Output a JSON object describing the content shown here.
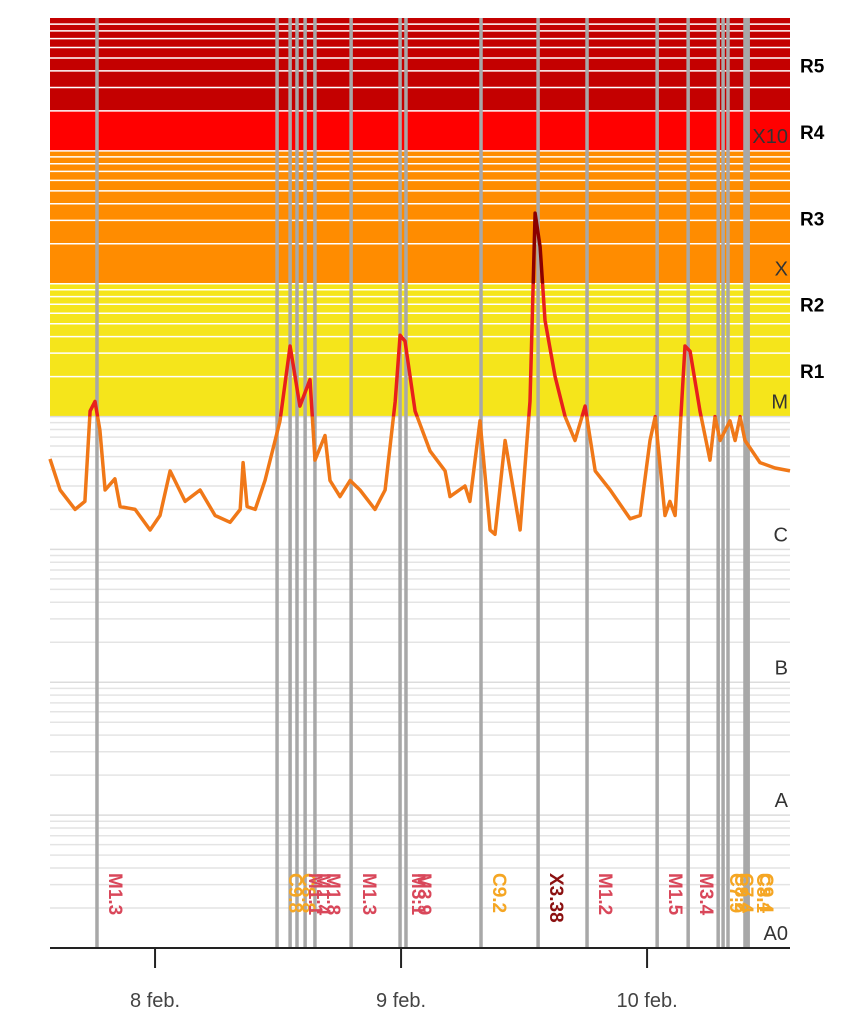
{
  "chart_data": {
    "type": "line",
    "yscale": "log",
    "xlim": [
      -0.427,
      2.581
    ],
    "xticks": [
      {
        "value": 0,
        "label": "8 feb."
      },
      {
        "value": 1,
        "label": "9 feb."
      },
      {
        "value": 2,
        "label": "10 feb."
      }
    ],
    "ylim": [
      1e-09,
      0.01
    ],
    "yticks": [
      {
        "value": 1e-09,
        "label": "A0"
      },
      {
        "value": 1e-08,
        "label": "A"
      },
      {
        "value": 1e-07,
        "label": "B"
      },
      {
        "value": 1e-06,
        "label": "C"
      },
      {
        "value": 1e-05,
        "label": "M"
      },
      {
        "value": 0.0001,
        "label": "X"
      },
      {
        "value": 0.001,
        "label": "X10"
      }
    ],
    "grid": true,
    "minor_grid": true,
    "bands": [
      {
        "label": "R1",
        "from": 1e-05,
        "to": 5e-05,
        "color": "#f5e51b"
      },
      {
        "label": "R2",
        "from": 5e-05,
        "to": 0.0001,
        "color": "#f5e51b"
      },
      {
        "label": "R3",
        "from": 0.0001,
        "to": 0.001,
        "color": "#ff8c00"
      },
      {
        "label": "R4",
        "from": 0.001,
        "to": 0.002,
        "color": "#ff0000"
      },
      {
        "label": "R5",
        "from": 0.002,
        "to": 0.01,
        "color": "#c40000"
      }
    ],
    "series": [
      {
        "color": "#f07818",
        "level_colors": [
          {
            "from": 1e-05,
            "color": "#e8201c"
          },
          {
            "from": 0.0001,
            "color": "#8b0000"
          }
        ],
        "x": [
          -0.427,
          -0.386,
          -0.325,
          -0.285,
          -0.264,
          -0.244,
          -0.224,
          -0.203,
          -0.163,
          -0.142,
          -0.081,
          -0.02,
          0.02,
          0.061,
          0.122,
          0.183,
          0.244,
          0.305,
          0.346,
          0.358,
          0.374,
          0.407,
          0.447,
          0.488,
          0.508,
          0.549,
          0.589,
          0.63,
          0.65,
          0.691,
          0.711,
          0.752,
          0.793,
          0.833,
          0.894,
          0.935,
          0.976,
          0.996,
          1.016,
          1.057,
          1.118,
          1.179,
          1.199,
          1.26,
          1.28,
          1.321,
          1.362,
          1.382,
          1.423,
          1.484,
          1.524,
          1.545,
          1.565,
          1.585,
          1.626,
          1.667,
          1.707,
          1.748,
          1.789,
          1.85,
          1.931,
          1.972,
          2.012,
          2.033,
          2.073,
          2.093,
          2.114,
          2.154,
          2.175,
          2.215,
          2.256,
          2.276,
          2.297,
          2.337,
          2.358,
          2.378,
          2.398,
          2.459,
          2.52,
          2.581
        ],
        "values": [
          4.8e-06,
          2.8e-06,
          2e-06,
          2.3e-06,
          1.1e-05,
          1.3e-05,
          7.9e-06,
          2.8e-06,
          3.4e-06,
          2.1e-06,
          2e-06,
          1.4e-06,
          1.8e-06,
          3.9e-06,
          2.3e-06,
          2.8e-06,
          1.8e-06,
          1.6e-06,
          2e-06,
          4.5e-06,
          2.1e-06,
          2e-06,
          3.3e-06,
          6.6e-06,
          9.3e-06,
          3.4e-05,
          1.2e-05,
          1.9e-05,
          4.7e-06,
          7.2e-06,
          3.3e-06,
          2.5e-06,
          3.3e-06,
          2.8e-06,
          2e-06,
          2.8e-06,
          1.3e-05,
          4.1e-05,
          3.7e-05,
          1.1e-05,
          5.5e-06,
          3.9e-06,
          2.5e-06,
          3e-06,
          2.3e-06,
          9.3e-06,
          1.4e-06,
          1.3e-06,
          6.6e-06,
          1.4e-06,
          1.3e-05,
          0.00034,
          0.00019,
          5.3e-05,
          2e-05,
          1e-05,
          6.6e-06,
          1.2e-05,
          3.9e-06,
          2.8e-06,
          1.7e-06,
          1.8e-06,
          6.6e-06,
          1e-05,
          1.8e-06,
          2.3e-06,
          1.8e-06,
          3.4e-05,
          3.1e-05,
          1.1e-05,
          4.7e-06,
          1e-05,
          6.6e-06,
          9.3e-06,
          6.6e-06,
          1e-05,
          6.6e-06,
          4.5e-06,
          4.1e-06,
          3.9e-06
        ]
      }
    ],
    "flares": [
      {
        "x": -0.236,
        "label": "M1.3",
        "color": "#d9475a"
      },
      {
        "x": 0.496,
        "label": "C9.8",
        "color": "#f5a623"
      },
      {
        "x": 0.549,
        "label": "C8.8",
        "color": "#f5a623"
      },
      {
        "x": 0.577,
        "label": "M1.1",
        "color": "#d9475a"
      },
      {
        "x": 0.61,
        "label": "M1.4",
        "color": "#d9475a"
      },
      {
        "x": 0.65,
        "label": "M1.8",
        "color": "#d9475a"
      },
      {
        "x": 0.797,
        "label": "M1.3",
        "color": "#d9475a"
      },
      {
        "x": 0.996,
        "label": "M3.1",
        "color": "#d9475a"
      },
      {
        "x": 1.02,
        "label": "M3.9",
        "color": "#d9475a"
      },
      {
        "x": 1.325,
        "label": "C9.2",
        "color": "#f5a623"
      },
      {
        "x": 1.557,
        "label": "X3.38",
        "color": "#8b1010"
      },
      {
        "x": 1.756,
        "label": "M1.2",
        "color": "#d9475a"
      },
      {
        "x": 2.041,
        "label": "M1.5",
        "color": "#d9475a"
      },
      {
        "x": 2.167,
        "label": "M3.4",
        "color": "#d9475a"
      },
      {
        "x": 2.289,
        "label": "C7.9",
        "color": "#f5a623"
      },
      {
        "x": 2.309,
        "label": "C8.2",
        "color": "#f5a623"
      },
      {
        "x": 2.329,
        "label": "C7.4",
        "color": "#f5a623"
      },
      {
        "x": 2.398,
        "label": "C8.1",
        "color": "#f5a623"
      },
      {
        "x": 2.411,
        "label": "C9.4",
        "color": "#f5a623"
      }
    ]
  }
}
